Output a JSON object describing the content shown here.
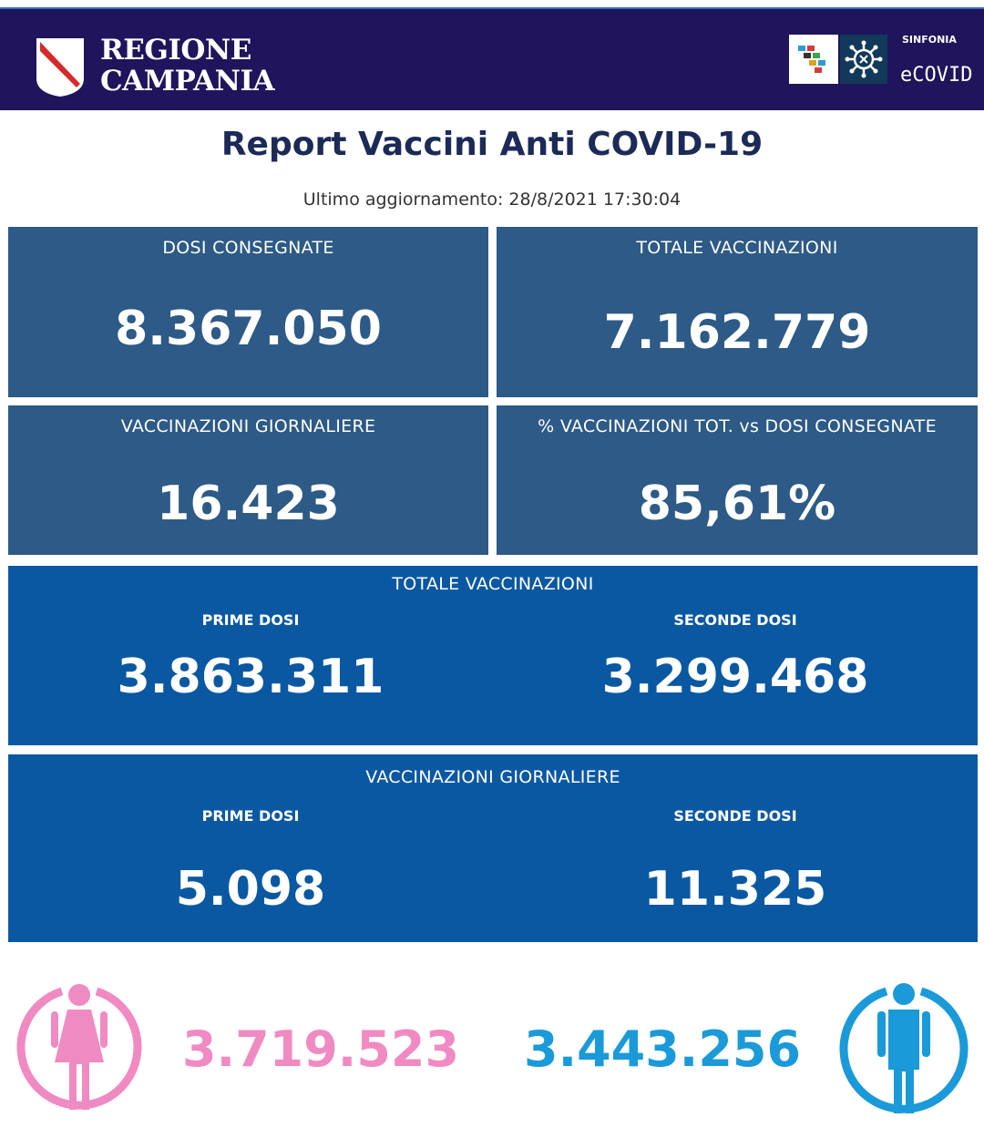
{
  "header": {
    "brand_line1": "REGIONE",
    "brand_line2": "CAMPANIA",
    "sinfonia": "SINFONIA",
    "ecovid": "eCOVID"
  },
  "title": "Report Vaccini Anti COVID-19",
  "updated": "Ultimo aggiornamento: 28/8/2021  17:30:04",
  "cards": {
    "dosi_consegnate": {
      "label": "DOSI  CONSEGNATE",
      "value": "8.367.050"
    },
    "totale_vaccinazioni": {
      "label": "TOTALE VACCINAZIONI",
      "value": "7.162.779"
    },
    "vaccinazioni_giornaliere": {
      "label": "VACCINAZIONI GIORNALIERE",
      "value": "16.423"
    },
    "percentuale": {
      "label": "% VACCINAZIONI TOT. vs DOSI CONSEGNATE",
      "value": "85,61%"
    }
  },
  "totale": {
    "heading": "TOTALE VACCINAZIONI",
    "prime_label": "PRIME DOSI",
    "prime_value": "3.863.311",
    "seconde_label": "SECONDE DOSI",
    "seconde_value": "3.299.468"
  },
  "giornaliere": {
    "heading": "VACCINAZIONI GIORNALIERE",
    "prime_label": "PRIME DOSI",
    "prime_value": "5.098",
    "seconde_label": "SECONDE DOSI",
    "seconde_value": "11.325"
  },
  "gender": {
    "female_value": "3.719.523",
    "male_value": "3.443.256",
    "female_icon": "female-person-icon",
    "male_icon": "male-person-icon"
  },
  "colors": {
    "header_bg": "#20145c",
    "card_bg": "#2d5a86",
    "wide_bg": "#0b58a2",
    "female": "#f08ac2",
    "male": "#1a9ad8",
    "title": "#1c2a58"
  }
}
